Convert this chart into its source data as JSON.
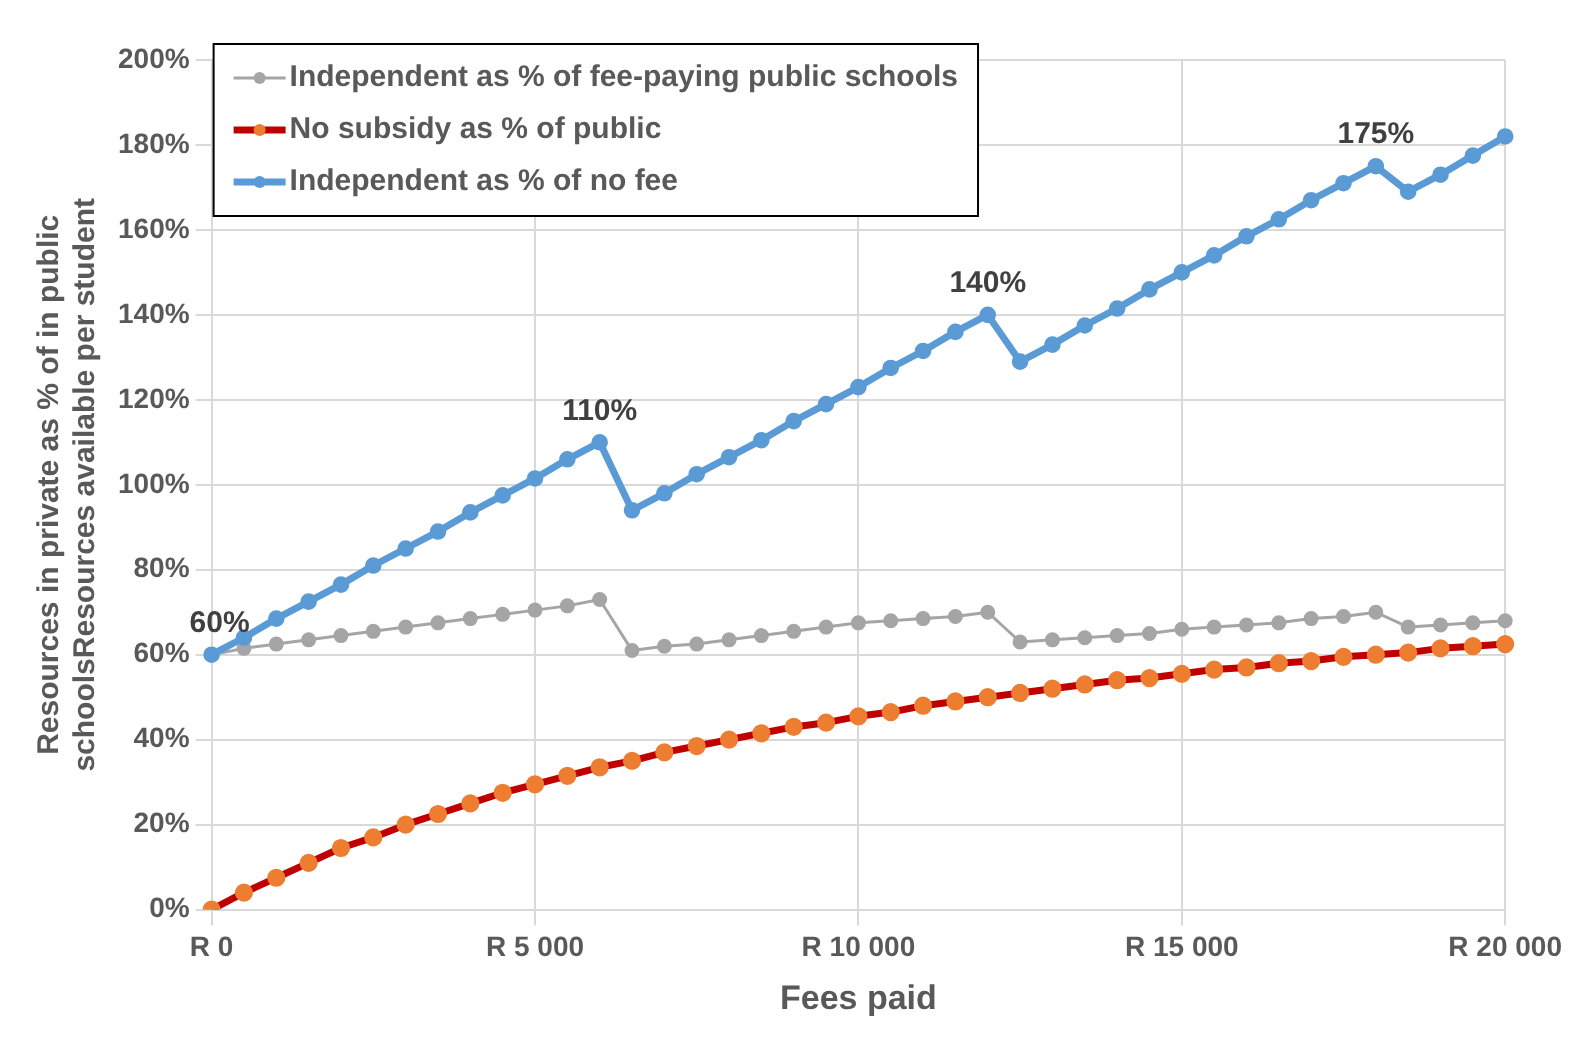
{
  "chart_data": {
    "type": "line",
    "xlabel": "Fees paid",
    "ylabel": "Resources in private as % of in public schoolsResources available per student",
    "categories": [
      "R 0",
      null,
      null,
      null,
      null,
      null,
      null,
      null,
      null,
      null,
      "R 5 000",
      null,
      null,
      null,
      null,
      null,
      null,
      null,
      null,
      null,
      "R 10 000",
      null,
      null,
      null,
      null,
      null,
      null,
      null,
      null,
      null,
      "R 15 000",
      null,
      null,
      null,
      null,
      null,
      null,
      null,
      null,
      null,
      "R 20 000"
    ],
    "series": [
      {
        "name": "Independent as % of fee-paying public schools",
        "color": "#a5a5a5",
        "marker": "circle",
        "values": [
          60,
          61.5,
          62.5,
          63.5,
          64.5,
          65.5,
          66.5,
          67.5,
          68.5,
          69.5,
          70.5,
          71.5,
          73,
          61,
          62,
          62.5,
          63.5,
          64.5,
          65.5,
          66.5,
          67.5,
          68,
          68.5,
          69,
          70,
          63,
          63.5,
          64,
          64.5,
          65,
          66,
          66.5,
          67,
          67.5,
          68.5,
          69,
          70,
          66.5,
          67,
          67.5,
          68
        ]
      },
      {
        "name": "No subsidy as % of public",
        "color": "#c00000",
        "colors": [
          "#ed7d31",
          "#ed7d31",
          "#ed7d31",
          "#ed7d31",
          "#ed7d31",
          "#ed7d31",
          "#ed7d31",
          "#ed7d31",
          "#ed7d31",
          "#ed7d31",
          "#ed7d31",
          "#ed7d31",
          "#ed7d31",
          "#ed7d31",
          "#ed7d31",
          "#ed7d31",
          "#ed7d31",
          "#ed7d31",
          "#ed7d31",
          "#ed7d31",
          "#ed7d31",
          "#ed7d31",
          "#ed7d31",
          "#ed7d31",
          "#ed7d31",
          "#ed7d31",
          "#ed7d31",
          "#ed7d31",
          "#ed7d31",
          "#ed7d31",
          "#ed7d31",
          "#ed7d31",
          "#ed7d31",
          "#ed7d31",
          "#ed7d31",
          "#ed7d31",
          "#ed7d31",
          "#ed7d31",
          "#ed7d31",
          "#ed7d31",
          "#ed7d31"
        ],
        "marker": "circle",
        "values": [
          0,
          4,
          7.5,
          11,
          14.5,
          17,
          20,
          22.5,
          25,
          27.5,
          29.5,
          31.5,
          33.5,
          35,
          37,
          38.5,
          40,
          41.5,
          43,
          44,
          45.5,
          46.5,
          48,
          49,
          50,
          51,
          52,
          53,
          54,
          54.5,
          55.5,
          56.5,
          57,
          58,
          58.5,
          59.5,
          60,
          60.5,
          61.5,
          62,
          62.5
        ]
      },
      {
        "name": "Independent as % of no fee",
        "color": "#5b9bd5",
        "marker": "circle",
        "values": [
          60,
          64,
          68.5,
          72.5,
          76.5,
          81,
          85,
          89,
          93.5,
          97.5,
          101.5,
          106,
          110,
          94,
          98,
          102.5,
          106.5,
          110.5,
          115,
          119,
          123,
          127.5,
          131.5,
          136,
          140,
          129,
          133,
          137.5,
          141.5,
          146,
          150,
          154,
          158.5,
          162.5,
          167,
          171,
          175,
          169,
          173,
          177.5,
          182
        ],
        "value_labels": [
          "60%",
          null,
          null,
          null,
          null,
          null,
          null,
          null,
          null,
          null,
          null,
          null,
          "110%",
          null,
          null,
          null,
          null,
          null,
          null,
          null,
          null,
          null,
          null,
          null,
          "140%",
          null,
          null,
          null,
          null,
          null,
          null,
          null,
          null,
          null,
          null,
          null,
          "175%",
          null,
          null,
          null,
          null
        ]
      }
    ],
    "ylim": [
      0,
      200
    ],
    "yticks": [
      {
        "value": 0,
        "label": "0%"
      },
      {
        "value": 20,
        "label": "20%"
      },
      {
        "value": 40,
        "label": "40%"
      },
      {
        "value": 60,
        "label": "60%"
      },
      {
        "value": 80,
        "label": "80%"
      },
      {
        "value": 100,
        "label": "100%"
      },
      {
        "value": 120,
        "label": "120%"
      },
      {
        "value": 140,
        "label": "140%"
      },
      {
        "value": 160,
        "label": "160%"
      },
      {
        "value": 180,
        "label": "180%"
      },
      {
        "value": 200,
        "label": "200%"
      }
    ],
    "grid": true,
    "legend": "top left",
    "line_style": "solid"
  }
}
